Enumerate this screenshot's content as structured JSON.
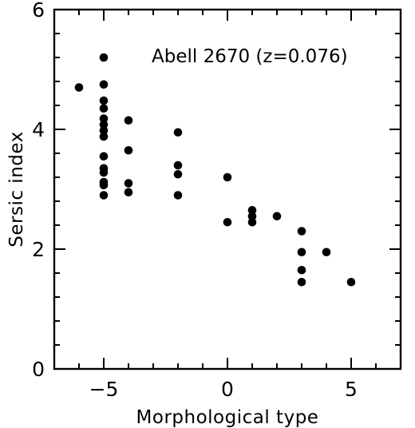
{
  "chart_data": {
    "type": "scatter",
    "title": "",
    "annotation": "Abell 2670 (z=0.076)",
    "xlabel": "Morphological type",
    "ylabel": "Sersic index",
    "xlim": [
      -7,
      7
    ],
    "ylim": [
      0,
      6
    ],
    "xticks": [
      -5,
      0,
      5
    ],
    "yticks": [
      0,
      2,
      4,
      6
    ],
    "x_minor_step": 1,
    "y_minor_step": 0.4,
    "grid": false,
    "legend": "none",
    "series": [
      {
        "points": [
          {
            "x": -6,
            "y": 4.7
          },
          {
            "x": -5,
            "y": 5.2
          },
          {
            "x": -5,
            "y": 4.75
          },
          {
            "x": -5,
            "y": 4.48
          },
          {
            "x": -5,
            "y": 4.35
          },
          {
            "x": -5,
            "y": 4.18
          },
          {
            "x": -5,
            "y": 4.08
          },
          {
            "x": -5,
            "y": 3.98
          },
          {
            "x": -5,
            "y": 3.88
          },
          {
            "x": -5,
            "y": 3.55
          },
          {
            "x": -5,
            "y": 3.35
          },
          {
            "x": -5,
            "y": 3.28
          },
          {
            "x": -5,
            "y": 3.12
          },
          {
            "x": -5,
            "y": 3.07
          },
          {
            "x": -5,
            "y": 2.9
          },
          {
            "x": -4,
            "y": 4.15
          },
          {
            "x": -4,
            "y": 3.65
          },
          {
            "x": -4,
            "y": 3.1
          },
          {
            "x": -4,
            "y": 2.95
          },
          {
            "x": -2,
            "y": 3.95
          },
          {
            "x": -2,
            "y": 3.4
          },
          {
            "x": -2,
            "y": 3.25
          },
          {
            "x": -2,
            "y": 2.9
          },
          {
            "x": 0,
            "y": 3.2
          },
          {
            "x": 0,
            "y": 2.45
          },
          {
            "x": 1,
            "y": 2.65
          },
          {
            "x": 1,
            "y": 2.55
          },
          {
            "x": 1,
            "y": 2.45
          },
          {
            "x": 2,
            "y": 2.55
          },
          {
            "x": 3,
            "y": 2.3
          },
          {
            "x": 3,
            "y": 1.95
          },
          {
            "x": 3,
            "y": 1.65
          },
          {
            "x": 3,
            "y": 1.45
          },
          {
            "x": 4,
            "y": 1.95
          },
          {
            "x": 5,
            "y": 1.45
          }
        ]
      }
    ]
  }
}
